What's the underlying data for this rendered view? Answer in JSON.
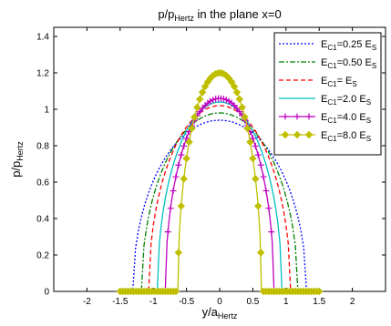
{
  "chart_data": {
    "type": "line",
    "title": {
      "base": "p/p",
      "sub": "Hertz",
      "suffix": " in the plane x=0"
    },
    "xlabel": {
      "base": "y/a",
      "sub": "Hertz"
    },
    "ylabel": {
      "base": "p/p",
      "sub": "Hertz"
    },
    "xlim": [
      -2.5,
      2.5
    ],
    "ylim": [
      0,
      1.45
    ],
    "xticks": [
      -2,
      -1.5,
      -1,
      -0.5,
      0,
      0.5,
      1,
      1.5,
      2
    ],
    "xtick_labels": [
      "-2",
      "-1.5",
      "-1",
      "-0.5",
      "0",
      "0.5",
      "1",
      "1.5",
      "2"
    ],
    "yticks": [
      0,
      0.2,
      0.4,
      0.6,
      0.8,
      1,
      1.2,
      1.4
    ],
    "ytick_labels": [
      "0",
      "0.2",
      "0.4",
      "0.6",
      "0.8",
      "1",
      "1.2",
      "1.4"
    ],
    "grid": false,
    "legend_position": "top-right",
    "series": [
      {
        "legend": {
          "pre": "E",
          "sub": "C1",
          "post": "=0.25 E",
          "sub2": "S"
        },
        "color": "#0000ff",
        "dash": "2,2",
        "marker": "none",
        "a": 1.31,
        "peak": 0.94
      },
      {
        "legend": {
          "pre": "E",
          "sub": "C1",
          "post": "=0.50 E",
          "sub2": "S"
        },
        "color": "#008000",
        "dash": "6,2,2,2",
        "marker": "none",
        "a": 1.18,
        "peak": 0.98
      },
      {
        "legend": {
          "pre": "E",
          "sub": "C1",
          "post": "= E",
          "sub2": "S"
        },
        "color": "#ff0000",
        "dash": "5,3",
        "marker": "none",
        "a": 1.07,
        "peak": 1.02
      },
      {
        "legend": {
          "pre": "E",
          "sub": "C1",
          "post": "=2.0 E",
          "sub2": "S"
        },
        "color": "#00bfbf",
        "dash": "",
        "marker": "none",
        "a": 0.94,
        "peak": 1.04
      },
      {
        "legend": {
          "pre": "E",
          "sub": "C1",
          "post": "=4.0 E",
          "sub2": "S"
        },
        "color": "#bf00bf",
        "dash": "",
        "marker": "plus",
        "a": 0.82,
        "peak": 1.06
      },
      {
        "legend": {
          "pre": "E",
          "sub": "C1",
          "post": "=8.0 E",
          "sub2": "S"
        },
        "color": "#bfbf00",
        "dash": "",
        "marker": "star",
        "a": 0.63,
        "peak": 1.2
      }
    ]
  }
}
